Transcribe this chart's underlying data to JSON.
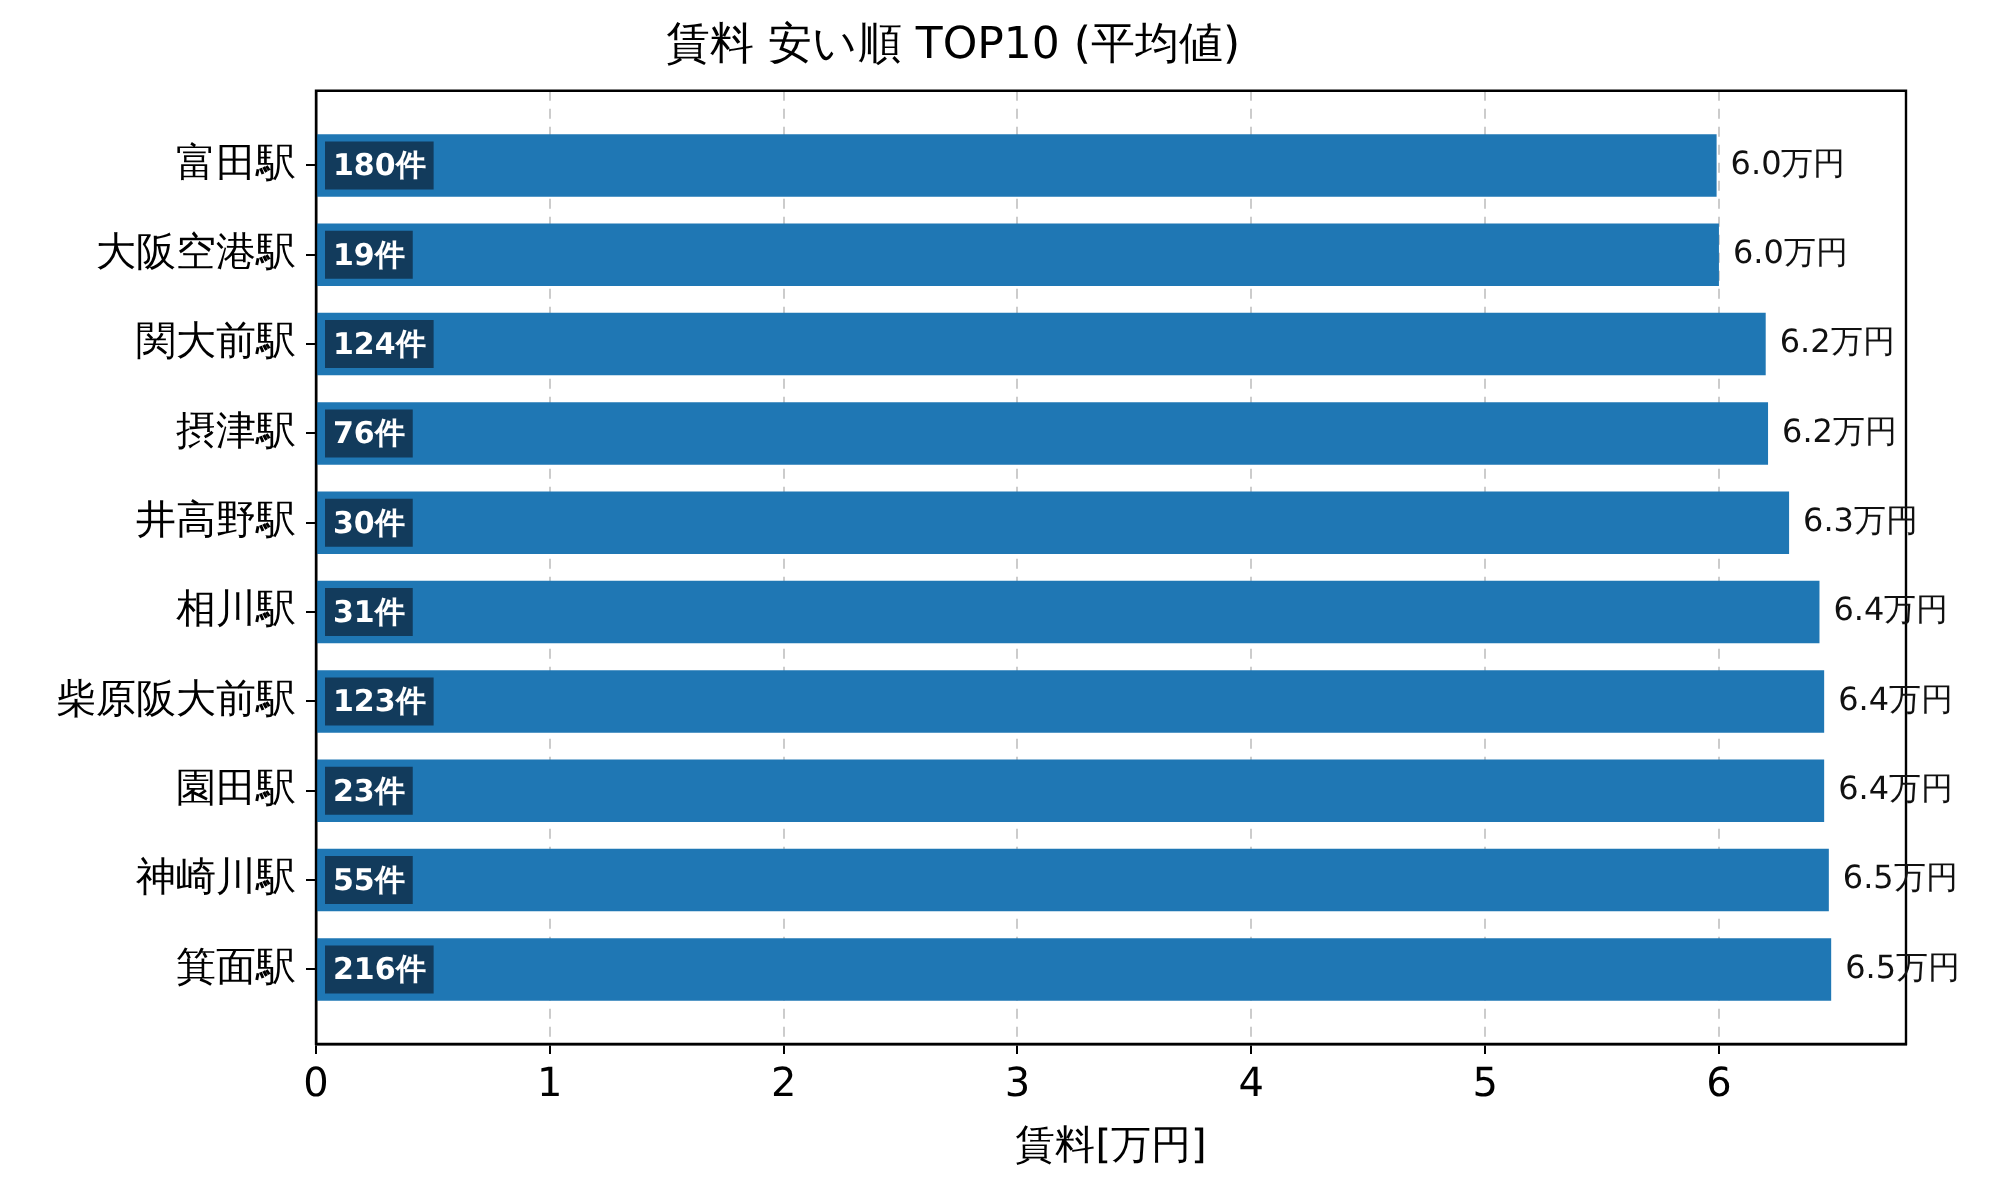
{
  "chart_data": {
    "type": "bar",
    "orientation": "horizontal",
    "title": "賃料 安い順 TOP10 (平均値)",
    "xlabel": "賃料[万円]",
    "categories": [
      "富田駅",
      "大阪空港駅",
      "関大前駅",
      "摂津駅",
      "井高野駅",
      "相川駅",
      "柴原阪大前駅",
      "園田駅",
      "神崎川駅",
      "箕面駅"
    ],
    "values": [
      5.99,
      6.0,
      6.2,
      6.21,
      6.3,
      6.43,
      6.45,
      6.45,
      6.47,
      6.48
    ],
    "value_labels": [
      "6.0万円",
      "6.0万円",
      "6.2万円",
      "6.2万円",
      "6.3万円",
      "6.4万円",
      "6.4万円",
      "6.4万円",
      "6.5万円",
      "6.5万円"
    ],
    "color": "#1f77b4",
    "xlim": [
      0,
      6.8
    ],
    "xticks": [
      0,
      1,
      2,
      3,
      4,
      5,
      6
    ],
    "grid": "x",
    "annotations": [
      {
        "text": "180件",
        "y": "富田駅"
      },
      {
        "text": "19件",
        "y": "大阪空港駅"
      },
      {
        "text": "124件",
        "y": "関大前駅"
      },
      {
        "text": "76件",
        "y": "摂津駅"
      },
      {
        "text": "30件",
        "y": "井高野駅"
      },
      {
        "text": "31件",
        "y": "相川駅"
      },
      {
        "text": "123件",
        "y": "柴原阪大前駅"
      },
      {
        "text": "23件",
        "y": "園田駅"
      },
      {
        "text": "55件",
        "y": "神崎川駅"
      },
      {
        "text": "216件",
        "y": "箕面駅"
      }
    ]
  }
}
